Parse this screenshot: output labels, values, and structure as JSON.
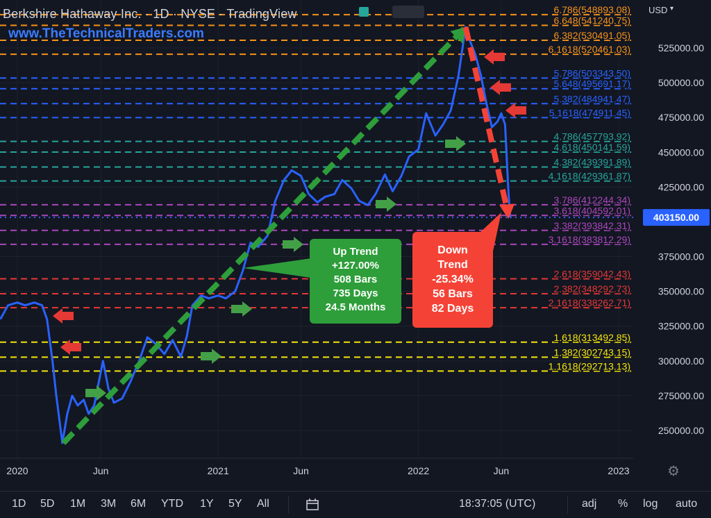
{
  "header": {
    "title": "Berkshire Hathaway Inc. · 1D · NYSE · TradingView",
    "site": "www.TheTechnicalTraders.com"
  },
  "price_axis": {
    "currency": "USD",
    "ticks": [
      "525000.00",
      "500000.00",
      "475000.00",
      "450000.00",
      "425000.00",
      "375000.00",
      "350000.00",
      "325000.00",
      "300000.00",
      "275000.00",
      "250000.00"
    ],
    "last_price": "403150.00"
  },
  "time_axis": {
    "labels": [
      "2020",
      "Jun",
      "2021",
      "Jun",
      "2022",
      "Jun",
      "2023"
    ]
  },
  "bottom_bar": {
    "timeframes": [
      "1D",
      "5D",
      "1M",
      "3M",
      "6M",
      "YTD",
      "1Y",
      "5Y",
      "All"
    ],
    "clock": "18:37:05 (UTC)",
    "adj": "adj",
    "percent": "%",
    "log": "log",
    "auto": "auto"
  },
  "annotations": {
    "up_trend": [
      "Up Trend",
      "+127.00%",
      "508 Bars",
      "735 Days",
      "24.5 Months"
    ],
    "down_trend": [
      "Down",
      "Trend",
      "-25.34%",
      "56 Bars",
      "82 Days"
    ]
  },
  "colors": {
    "background": "#131722",
    "line": "#2962ff",
    "orange": "#f7931a",
    "blue": "#2962ff",
    "teal": "#26a69a",
    "purple": "#9c27b0",
    "red": "#e53935",
    "yellow": "#f5e50a",
    "green_box": "#2e9e3a",
    "red_box": "#f44336"
  },
  "chart_data": {
    "type": "line",
    "title": "Berkshire Hathaway Inc. · 1D · NYSE · TradingView",
    "xlabel": "",
    "ylabel": "",
    "ylim": [
      236000,
      555000
    ],
    "x_ticks": [
      {
        "label": "2020",
        "date": "2020-01-01"
      },
      {
        "label": "Jun",
        "date": "2020-06-01"
      },
      {
        "label": "2021",
        "date": "2021-01-01"
      },
      {
        "label": "Jun",
        "date": "2021-06-01"
      },
      {
        "label": "2022",
        "date": "2022-01-01"
      },
      {
        "label": "Jun",
        "date": "2022-06-01"
      },
      {
        "label": "2023",
        "date": "2023-01-01"
      }
    ],
    "series": [
      {
        "values": [
          [
            "2019-12-01",
            330000
          ],
          [
            "2019-12-15",
            340000
          ],
          [
            "2020-01-01",
            342000
          ],
          [
            "2020-01-15",
            340000
          ],
          [
            "2020-02-01",
            342000
          ],
          [
            "2020-02-15",
            340000
          ],
          [
            "2020-02-24",
            330000
          ],
          [
            "2020-03-05",
            300000
          ],
          [
            "2020-03-12",
            275000
          ],
          [
            "2020-03-23",
            241000
          ],
          [
            "2020-04-01",
            262000
          ],
          [
            "2020-04-10",
            275000
          ],
          [
            "2020-04-20",
            268000
          ],
          [
            "2020-05-01",
            272000
          ],
          [
            "2020-05-10",
            262000
          ],
          [
            "2020-05-20",
            268000
          ],
          [
            "2020-06-05",
            300000
          ],
          [
            "2020-06-15",
            280000
          ],
          [
            "2020-06-25",
            270000
          ],
          [
            "2020-07-10",
            273000
          ],
          [
            "2020-07-25",
            285000
          ],
          [
            "2020-08-10",
            300000
          ],
          [
            "2020-08-25",
            317000
          ],
          [
            "2020-09-10",
            312000
          ],
          [
            "2020-09-25",
            305000
          ],
          [
            "2020-10-10",
            315000
          ],
          [
            "2020-10-25",
            303000
          ],
          [
            "2020-11-05",
            318000
          ],
          [
            "2020-11-15",
            340000
          ],
          [
            "2020-12-01",
            347000
          ],
          [
            "2020-12-15",
            345000
          ],
          [
            "2021-01-01",
            347000
          ],
          [
            "2021-01-15",
            345000
          ],
          [
            "2021-02-01",
            350000
          ],
          [
            "2021-02-15",
            365000
          ],
          [
            "2021-03-01",
            385000
          ],
          [
            "2021-03-15",
            382000
          ],
          [
            "2021-04-01",
            390000
          ],
          [
            "2021-04-15",
            415000
          ],
          [
            "2021-05-01",
            430000
          ],
          [
            "2021-05-15",
            437000
          ],
          [
            "2021-06-01",
            433000
          ],
          [
            "2021-06-15",
            420000
          ],
          [
            "2021-07-01",
            414000
          ],
          [
            "2021-07-15",
            418000
          ],
          [
            "2021-08-01",
            420000
          ],
          [
            "2021-08-15",
            430000
          ],
          [
            "2021-09-01",
            424000
          ],
          [
            "2021-09-15",
            415000
          ],
          [
            "2021-10-01",
            412000
          ],
          [
            "2021-10-15",
            420000
          ],
          [
            "2021-11-01",
            434000
          ],
          [
            "2021-11-15",
            422000
          ],
          [
            "2021-12-01",
            433000
          ],
          [
            "2021-12-15",
            447000
          ],
          [
            "2022-01-01",
            452000
          ],
          [
            "2022-01-15",
            478000
          ],
          [
            "2022-02-01",
            462000
          ],
          [
            "2022-02-15",
            470000
          ],
          [
            "2022-03-01",
            480000
          ],
          [
            "2022-03-15",
            505000
          ],
          [
            "2022-03-28",
            540000
          ],
          [
            "2022-04-05",
            530000
          ],
          [
            "2022-04-15",
            520000
          ],
          [
            "2022-04-25",
            505000
          ],
          [
            "2022-05-05",
            485000
          ],
          [
            "2022-05-15",
            468000
          ],
          [
            "2022-05-25",
            472000
          ],
          [
            "2022-06-01",
            478000
          ],
          [
            "2022-06-08",
            470000
          ],
          [
            "2022-06-14",
            422000
          ],
          [
            "2022-06-17",
            403150
          ]
        ]
      }
    ],
    "fib_levels": [
      {
        "label": "6.786(548893.08)",
        "value": 548893.08,
        "color": "#f7931a"
      },
      {
        "label": "6.648(541240.75)",
        "value": 541240.75,
        "color": "#f7931a"
      },
      {
        "label": "6.382(530491.05)",
        "value": 530491.05,
        "color": "#f7931a"
      },
      {
        "label": "6.1618(520461.03)",
        "value": 520461.03,
        "color": "#f7931a"
      },
      {
        "label": "5.786(503343.50)",
        "value": 503343.5,
        "color": "#2962ff"
      },
      {
        "label": "5.648(495691.17)",
        "value": 495691.17,
        "color": "#2962ff"
      },
      {
        "label": "5.382(484941.47)",
        "value": 484941.47,
        "color": "#2962ff"
      },
      {
        "label": "5.1618(474911.45)",
        "value": 474911.45,
        "color": "#2962ff"
      },
      {
        "label": "4.786(457793.92)",
        "value": 457793.92,
        "color": "#26a69a"
      },
      {
        "label": "4.618(450141.59)",
        "value": 450141.59,
        "color": "#26a69a"
      },
      {
        "label": "4.382(439391.89)",
        "value": 439391.89,
        "color": "#26a69a"
      },
      {
        "label": "4.1618(429361.87)",
        "value": 429361.87,
        "color": "#26a69a"
      },
      {
        "label": "3.786(412244.34)",
        "value": 412244.34,
        "color": "#ab47bc"
      },
      {
        "label": "3.618(404592.01)",
        "value": 404592.01,
        "color": "#ab47bc"
      },
      {
        "label": "3.382(393842.31)",
        "value": 393842.31,
        "color": "#ab47bc"
      },
      {
        "label": "3.1618(383812.29)",
        "value": 383812.29,
        "color": "#ab47bc"
      },
      {
        "label": "2.618(359042.43)",
        "value": 359042.43,
        "color": "#e53935"
      },
      {
        "label": "2.382(348292.73)",
        "value": 348292.73,
        "color": "#e53935"
      },
      {
        "label": "2.1618(338262.71)",
        "value": 338262.71,
        "color": "#e53935"
      },
      {
        "label": "1.618(313492.85)",
        "value": 313492.85,
        "color": "#f5e50a"
      },
      {
        "label": "1.382(302743.15)",
        "value": 302743.15,
        "color": "#f5e50a"
      },
      {
        "label": "1.1618(292713.13)",
        "value": 292713.13,
        "color": "#f5e50a"
      }
    ]
  }
}
